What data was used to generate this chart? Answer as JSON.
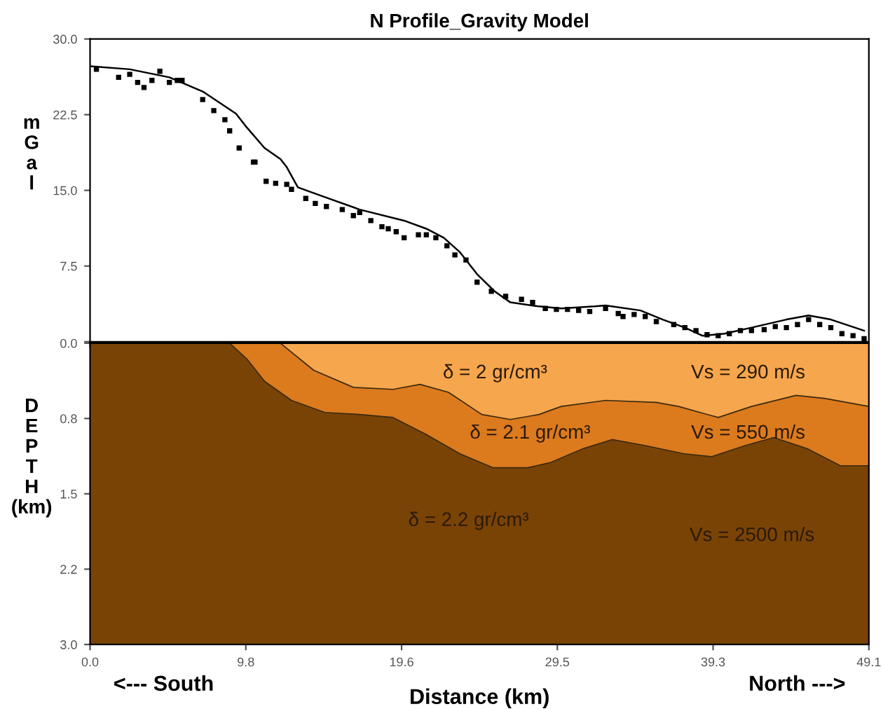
{
  "chart_data": [
    {
      "type": "scatter",
      "title": "N Profile_Gravity Model",
      "ylabel": "mGal",
      "xlim": [
        0,
        49.1
      ],
      "ylim": [
        0,
        30
      ],
      "yticks": [
        {
          "value": 0,
          "label": null
        },
        {
          "value": 7.5,
          "label": "7.5"
        },
        {
          "value": 15,
          "label": "15.0"
        },
        {
          "value": 22.5,
          "label": "22.5"
        },
        {
          "value": 30,
          "label": "30.0"
        }
      ],
      "tick_labels": "y",
      "series": [
        {
          "type": "scatter",
          "marker": "square",
          "color": "#000000",
          "x": [
            0.4,
            1.8,
            2.5,
            3.0,
            3.4,
            3.9,
            4.4,
            5.0,
            5.5,
            5.8,
            7.1,
            7.8,
            8.5,
            8.8,
            9.4,
            10.3,
            10.4,
            11.1,
            11.7,
            12.4,
            12.7,
            13.6,
            14.2,
            14.9,
            15.9,
            16.6,
            17.0,
            17.7,
            18.4,
            18.8,
            19.3,
            19.8,
            20.7,
            21.2,
            21.8,
            22.5,
            23.0,
            23.7,
            24.4,
            25.3,
            26.2,
            27.2,
            27.9,
            28.7,
            29.4,
            30.1,
            30.8,
            31.5,
            32.5,
            33.3,
            33.6,
            34.3,
            35.0,
            35.7,
            36.8,
            37.5,
            38.2,
            38.9,
            39.6,
            40.3,
            41.0,
            41.7,
            42.5,
            43.2,
            43.9,
            44.6,
            45.3,
            46.0,
            46.7,
            47.4,
            48.1,
            48.8
          ],
          "values": [
            27.0,
            26.2,
            26.5,
            25.7,
            25.2,
            25.9,
            26.8,
            25.7,
            25.9,
            25.9,
            24.0,
            22.9,
            22.0,
            20.9,
            19.2,
            17.8,
            17.8,
            15.9,
            15.7,
            15.6,
            15.1,
            14.2,
            13.7,
            13.4,
            13.1,
            12.5,
            12.8,
            12.0,
            11.4,
            11.2,
            10.9,
            10.3,
            10.6,
            10.6,
            10.3,
            9.5,
            8.6,
            8.1,
            5.9,
            5.0,
            4.5,
            4.2,
            3.9,
            3.3,
            3.2,
            3.2,
            3.1,
            3.0,
            3.3,
            2.8,
            2.5,
            2.7,
            2.5,
            2.0,
            1.7,
            1.4,
            1.1,
            0.7,
            0.6,
            0.8,
            1.1,
            1.1,
            1.2,
            1.5,
            1.4,
            1.7,
            2.2,
            1.7,
            1.4,
            0.8,
            0.6,
            0.3
          ]
        },
        {
          "type": "line",
          "color": "#000000",
          "x": [
            0,
            2.5,
            5.0,
            7.1,
            9.2,
            9.9,
            11.0,
            12.0,
            12.4,
            13.1,
            14.5,
            17.0,
            19.8,
            21.2,
            22.3,
            23.3,
            24.4,
            25.5,
            26.5,
            28.3,
            29.7,
            31.8,
            32.5,
            34.7,
            36.1,
            37.5,
            38.6,
            40.0,
            41.7,
            43.9,
            45.3,
            46.7,
            48.8
          ],
          "values": [
            27.3,
            27.0,
            26.2,
            24.8,
            22.6,
            21.2,
            19.2,
            18.1,
            17.3,
            15.3,
            14.5,
            13.1,
            12.0,
            11.2,
            10.3,
            8.9,
            6.7,
            5.0,
            3.9,
            3.5,
            3.3,
            3.5,
            3.6,
            3.1,
            2.2,
            1.4,
            0.6,
            0.8,
            1.4,
            2.2,
            2.6,
            2.2,
            1.1
          ]
        }
      ]
    },
    {
      "type": "area",
      "xlabel": "Distance (km)",
      "ylabel": "DEPTH (km)",
      "xlim": [
        0,
        49.1
      ],
      "ylim": [
        3.0,
        0.0
      ],
      "xticks": [
        {
          "value": 0,
          "label": "0.0"
        },
        {
          "value": 9.82,
          "label": "9.8"
        },
        {
          "value": 19.64,
          "label": "19.6"
        },
        {
          "value": 29.46,
          "label": "29.5"
        },
        {
          "value": 39.28,
          "label": "39.3"
        },
        {
          "value": 49.1,
          "label": "49.1"
        }
      ],
      "yticks": [
        {
          "value": 0,
          "label": "0.0"
        },
        {
          "value": 0.75,
          "label": "0.8"
        },
        {
          "value": 1.5,
          "label": "1.5"
        },
        {
          "value": 2.25,
          "label": "2.2"
        },
        {
          "value": 3.0,
          "label": "3.0"
        }
      ],
      "series": [
        {
          "color": "#dc7a1e",
          "x": [
            0,
            8.8,
            9.9,
            11.0,
            12.7,
            14.8,
            17.0,
            19.1,
            21.2,
            23.3,
            25.4,
            27.6,
            29.0,
            31.1,
            32.9,
            35.0,
            37.4,
            39.2,
            41.3,
            43.1,
            45.2,
            47.3,
            49.1
          ],
          "values": [
            0,
            0,
            0.16,
            0.38,
            0.57,
            0.69,
            0.71,
            0.74,
            0.91,
            1.1,
            1.24,
            1.24,
            1.19,
            1.05,
            0.96,
            1.02,
            1.1,
            1.13,
            1.02,
            0.94,
            1.05,
            1.22,
            1.22
          ]
        },
        {
          "color": "#f6a64c",
          "x": [
            0,
            12.0,
            14.1,
            16.6,
            19.1,
            20.8,
            22.6,
            24.7,
            26.5,
            28.3,
            29.7,
            32.5,
            35.7,
            37.1,
            39.6,
            41.7,
            44.5,
            46.3,
            49.1
          ],
          "values": [
            0,
            0,
            0.27,
            0.44,
            0.46,
            0.41,
            0.49,
            0.71,
            0.76,
            0.71,
            0.63,
            0.57,
            0.59,
            0.63,
            0.74,
            0.63,
            0.52,
            0.55,
            0.63
          ]
        }
      ],
      "bands": [
        {
          "axis": "y",
          "from": 0.0,
          "to": 3.0,
          "color": "#7a4306"
        }
      ],
      "annotations": [
        "δ = 2 gr/cm³",
        "Vs = 290 m/s",
        "δ = 2.1 gr/cm³",
        "Vs = 550 m/s",
        "δ = 2.2 gr/cm³",
        "Vs = 2500 m/s",
        "<--- South",
        "North --->"
      ]
    }
  ]
}
